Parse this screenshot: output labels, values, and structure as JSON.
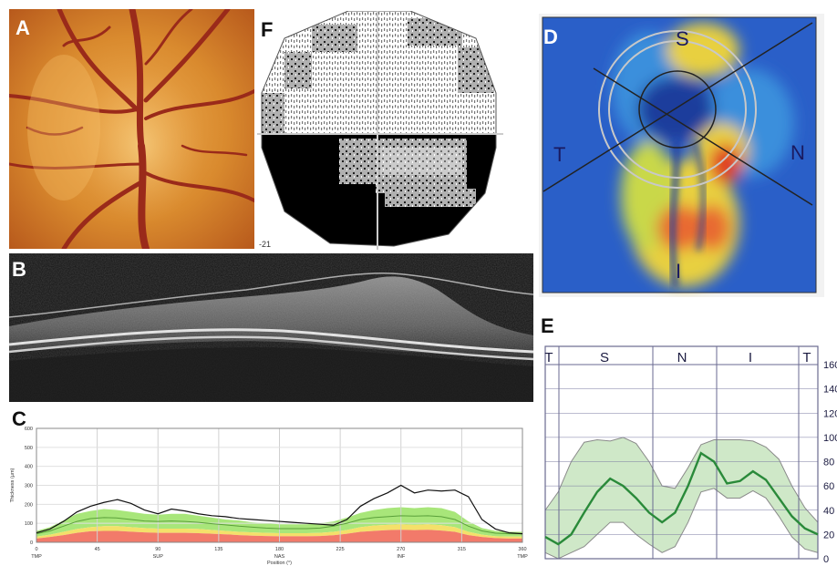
{
  "panels": {
    "a": {
      "label": "A"
    },
    "b": {
      "label": "B"
    },
    "c": {
      "label": "C"
    },
    "d": {
      "label": "D",
      "quadrants": {
        "s": "S",
        "t": "T",
        "n": "N",
        "i": "I"
      }
    },
    "e": {
      "label": "E"
    },
    "f": {
      "label": "F",
      "corner_value": "-21"
    }
  },
  "chart_data": [
    {
      "type": "line",
      "panel": "C",
      "ylabel": "Thickness (µm)",
      "xlabel": "Position (°)",
      "x_ticks": [
        0,
        45,
        90,
        135,
        180,
        225,
        270,
        315,
        360
      ],
      "y_ticks": [
        0,
        100,
        200,
        300,
        400,
        500,
        600
      ],
      "xlim": [
        0,
        360
      ],
      "ylim": [
        0,
        600
      ],
      "sector_labels": [
        {
          "at": 0,
          "text": "TMP"
        },
        {
          "at": 90,
          "text": "SUP"
        },
        {
          "at": 180,
          "text": "NAS"
        },
        {
          "at": 270,
          "text": "INF"
        },
        {
          "at": 360,
          "text": "TMP"
        }
      ],
      "measured": {
        "x": [
          0,
          10,
          20,
          30,
          40,
          50,
          60,
          70,
          80,
          90,
          100,
          110,
          120,
          130,
          140,
          150,
          160,
          170,
          180,
          190,
          200,
          210,
          220,
          230,
          240,
          250,
          260,
          270,
          280,
          290,
          300,
          310,
          320,
          330,
          340,
          350,
          360
        ],
        "y": [
          50,
          70,
          110,
          160,
          190,
          210,
          225,
          205,
          170,
          150,
          175,
          165,
          150,
          140,
          135,
          125,
          120,
          115,
          110,
          105,
          100,
          95,
          90,
          120,
          190,
          230,
          260,
          300,
          260,
          275,
          270,
          275,
          240,
          120,
          70,
          50,
          45
        ]
      },
      "normal_band": {
        "upper": [
          60,
          80,
          115,
          150,
          165,
          175,
          170,
          160,
          150,
          145,
          150,
          150,
          140,
          130,
          120,
          115,
          105,
          100,
          95,
          95,
          95,
          100,
          110,
          130,
          155,
          170,
          180,
          185,
          180,
          185,
          180,
          160,
          110,
          75,
          60,
          55,
          55
        ],
        "mid": [
          45,
          60,
          85,
          110,
          125,
          130,
          128,
          120,
          112,
          110,
          112,
          110,
          105,
          98,
          92,
          85,
          80,
          75,
          72,
          72,
          72,
          75,
          85,
          100,
          120,
          130,
          135,
          140,
          138,
          140,
          135,
          120,
          85,
          60,
          48,
          45,
          45
        ],
        "lower": [
          30,
          40,
          55,
          70,
          80,
          85,
          85,
          80,
          75,
          72,
          72,
          72,
          70,
          65,
          60,
          55,
          52,
          50,
          48,
          48,
          48,
          50,
          55,
          65,
          80,
          88,
          92,
          95,
          92,
          95,
          90,
          80,
          55,
          40,
          32,
          30,
          30
        ],
        "red_upper": [
          20,
          28,
          38,
          50,
          58,
          60,
          60,
          56,
          52,
          50,
          50,
          50,
          48,
          45,
          42,
          38,
          35,
          33,
          32,
          32,
          32,
          33,
          37,
          45,
          55,
          60,
          64,
          66,
          64,
          66,
          62,
          55,
          38,
          28,
          22,
          20,
          20
        ]
      }
    },
    {
      "type": "line",
      "panel": "E",
      "sector_labels": [
        "T",
        "S",
        "N",
        "I",
        "T"
      ],
      "y_ticks": [
        "160",
        "140",
        "120",
        "100",
        "80",
        "60",
        "40",
        "20",
        "0"
      ],
      "ylim": [
        0,
        160
      ],
      "series": {
        "mean": [
          18,
          12,
          20,
          38,
          55,
          66,
          60,
          50,
          38,
          30,
          38,
          60,
          87,
          80,
          62,
          64,
          72,
          65,
          50,
          35,
          25,
          20
        ],
        "upper": [
          40,
          55,
          80,
          96,
          98,
          97,
          100,
          95,
          80,
          60,
          58,
          75,
          94,
          98,
          98,
          98,
          97,
          92,
          82,
          60,
          42,
          30
        ],
        "lower": [
          5,
          0,
          5,
          10,
          20,
          30,
          30,
          20,
          12,
          5,
          10,
          30,
          55,
          58,
          50,
          50,
          56,
          50,
          35,
          18,
          8,
          5
        ]
      }
    }
  ]
}
